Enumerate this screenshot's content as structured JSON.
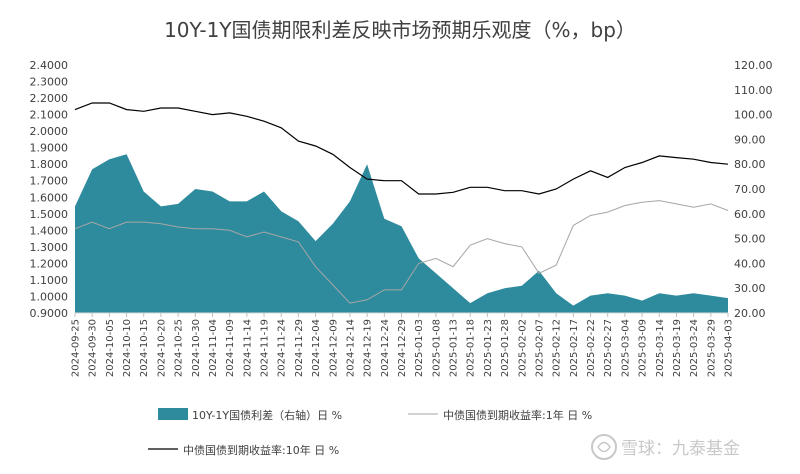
{
  "chart_data": {
    "type": "line",
    "title": "10Y-1Y国债期限利差反映市场预期乐观度（%，bp）",
    "categories": [
      "2024-09-25",
      "2024-09-30",
      "2024-10-05",
      "2024-10-10",
      "2024-10-15",
      "2024-10-20",
      "2024-10-25",
      "2024-10-30",
      "2024-11-04",
      "2024-11-09",
      "2024-11-14",
      "2024-11-19",
      "2024-11-24",
      "2024-11-29",
      "2024-12-04",
      "2024-12-09",
      "2024-12-14",
      "2024-12-19",
      "2024-12-24",
      "2024-12-29",
      "2025-01-03",
      "2025-01-08",
      "2025-01-13",
      "2025-01-18",
      "2025-01-23",
      "2025-01-28",
      "2025-02-02",
      "2025-02-07",
      "2025-02-12",
      "2025-02-17",
      "2025-02-22",
      "2025-02-27",
      "2025-03-04",
      "2025-03-09",
      "2025-03-14",
      "2025-03-19",
      "2025-03-24",
      "2025-03-29",
      "2025-04-03"
    ],
    "left_axis": {
      "ylim": [
        0.9,
        2.4
      ],
      "ticks": [
        "0.9000",
        "1.0000",
        "1.1000",
        "1.2000",
        "1.3000",
        "1.4000",
        "1.5000",
        "1.6000",
        "1.7000",
        "1.8000",
        "1.9000",
        "2.0000",
        "2.1000",
        "2.2000",
        "2.3000",
        "2.4000"
      ]
    },
    "right_axis": {
      "ylim": [
        20,
        120
      ],
      "ticks": [
        "20.00",
        "30.00",
        "40.00",
        "50.00",
        "60.00",
        "70.00",
        "80.00",
        "90.00",
        "100.00",
        "110.00",
        "120.00"
      ]
    },
    "series": [
      {
        "name": "10Y-1Y国债利差（右轴）日 %",
        "type": "area",
        "axis": "right",
        "color": "#2e8b9e",
        "values": [
          63,
          78,
          82,
          84,
          69,
          63,
          64,
          70,
          69,
          65,
          65,
          69,
          61,
          57,
          49,
          56,
          65,
          80,
          58,
          55,
          42,
          36,
          30,
          24,
          28,
          30,
          31,
          37,
          28,
          23,
          27,
          28,
          27,
          25,
          28,
          27,
          28,
          27,
          26
        ]
      },
      {
        "name": "中债国债到期收益率:1年 日 %",
        "type": "line",
        "axis": "left",
        "color": "#a6a6a6",
        "values": [
          1.41,
          1.45,
          1.41,
          1.45,
          1.45,
          1.44,
          1.42,
          1.41,
          1.41,
          1.4,
          1.36,
          1.39,
          1.36,
          1.33,
          1.18,
          1.07,
          0.96,
          0.98,
          1.04,
          1.04,
          1.2,
          1.23,
          1.18,
          1.31,
          1.35,
          1.32,
          1.3,
          1.14,
          1.19,
          1.43,
          1.49,
          1.51,
          1.55,
          1.57,
          1.58,
          1.56,
          1.54,
          1.56,
          1.52
        ]
      },
      {
        "name": "中债国债到期收益率:10年 日 %",
        "type": "line",
        "axis": "left",
        "color": "#000000",
        "values": [
          2.13,
          2.17,
          2.17,
          2.13,
          2.12,
          2.14,
          2.14,
          2.12,
          2.1,
          2.11,
          2.09,
          2.06,
          2.02,
          1.94,
          1.91,
          1.86,
          1.78,
          1.71,
          1.7,
          1.7,
          1.62,
          1.62,
          1.63,
          1.66,
          1.66,
          1.64,
          1.64,
          1.62,
          1.65,
          1.71,
          1.76,
          1.72,
          1.78,
          1.81,
          1.85,
          1.84,
          1.83,
          1.81,
          1.8
        ]
      }
    ],
    "legend_position": "bottom",
    "grid": false
  },
  "watermark": {
    "text": "雪球：九泰基金"
  }
}
